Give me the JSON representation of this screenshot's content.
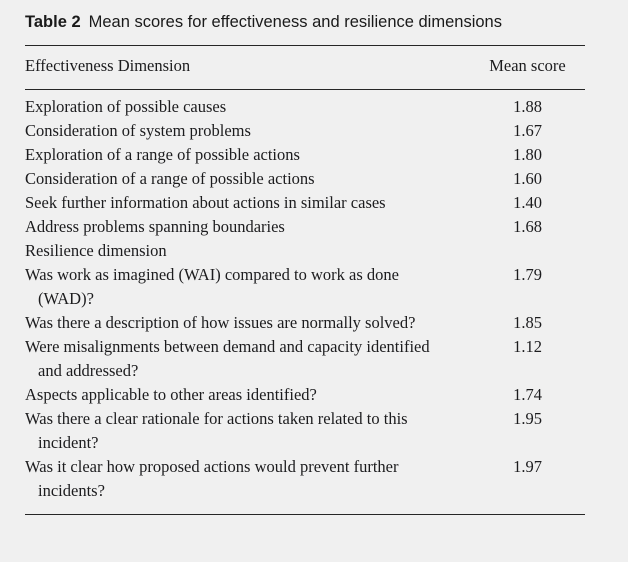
{
  "page": {
    "background_color": "#f0f0f0",
    "text_color": "#1c1c1e",
    "rule_color": "#262626"
  },
  "caption": {
    "label": "Table 2",
    "title": "Mean scores for effectiveness and resilience dimensions"
  },
  "table": {
    "columns": [
      "Effectiveness Dimension",
      "Mean score"
    ],
    "rows": [
      {
        "dimension": "Exploration of possible causes",
        "score": "1.88",
        "section": false
      },
      {
        "dimension": "Consideration of system problems",
        "score": "1.67",
        "section": false
      },
      {
        "dimension": "Exploration of a range of possible actions",
        "score": "1.80",
        "section": false
      },
      {
        "dimension": "Consideration of a range of possible actions",
        "score": "1.60",
        "section": false
      },
      {
        "dimension": "Seek further information about actions in similar cases",
        "score": "1.40",
        "section": false
      },
      {
        "dimension": "Address problems spanning boundaries",
        "score": "1.68",
        "section": false
      },
      {
        "dimension": "Resilience dimension",
        "score": "",
        "section": true
      },
      {
        "dimension": "Was work as imagined (WAI) compared to work as done (WAD)?",
        "score": "1.79",
        "section": false
      },
      {
        "dimension": "Was there a description of how issues are normally solved?",
        "score": "1.85",
        "section": false
      },
      {
        "dimension": "Were misalignments between demand and capacity identified and addressed?",
        "score": "1.12",
        "section": false
      },
      {
        "dimension": "Aspects applicable to other areas identified?",
        "score": "1.74",
        "section": false
      },
      {
        "dimension": "Was there a clear rationale for actions taken related to this incident?",
        "score": "1.95",
        "section": false
      },
      {
        "dimension": "Was it clear how proposed actions would prevent further incidents?",
        "score": "1.97",
        "section": false
      }
    ]
  }
}
